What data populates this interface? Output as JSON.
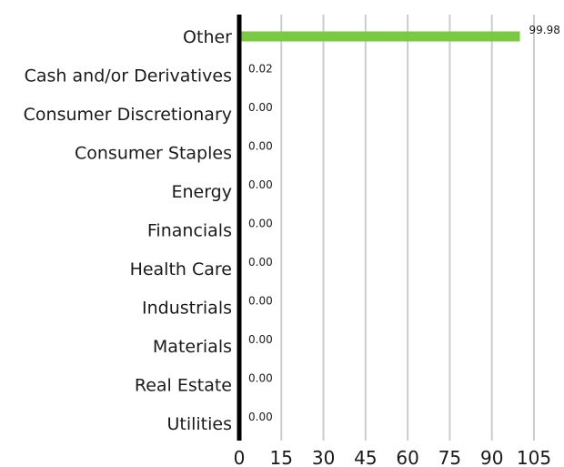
{
  "chart_data": {
    "type": "bar",
    "orientation": "horizontal",
    "categories": [
      "Other",
      "Cash and/or Derivatives",
      "Consumer Discretionary",
      "Consumer Staples",
      "Energy",
      "Financials",
      "Health Care",
      "Industrials",
      "Materials",
      "Real Estate",
      "Utilities"
    ],
    "values": [
      99.98,
      0.02,
      0.0,
      0.0,
      0.0,
      0.0,
      0.0,
      0.0,
      0.0,
      0.0,
      0.0
    ],
    "data_labels": [
      "99.98",
      "0.02",
      "0.00",
      "0.00",
      "0.00",
      "0.00",
      "0.00",
      "0.00",
      "0.00",
      "0.00",
      "0.00"
    ],
    "x_ticks": [
      0,
      15,
      30,
      45,
      60,
      75,
      90,
      105
    ],
    "x_tick_labels": [
      "0",
      "15",
      "30",
      "45",
      "60",
      "75",
      "90",
      "105"
    ],
    "xlim": [
      0,
      105
    ],
    "grid": true,
    "legend": "none",
    "bar_color": "#7ac943",
    "grid_color": "#cccccc",
    "axis_color": "#000000",
    "title": "",
    "xlabel": "",
    "ylabel": ""
  }
}
